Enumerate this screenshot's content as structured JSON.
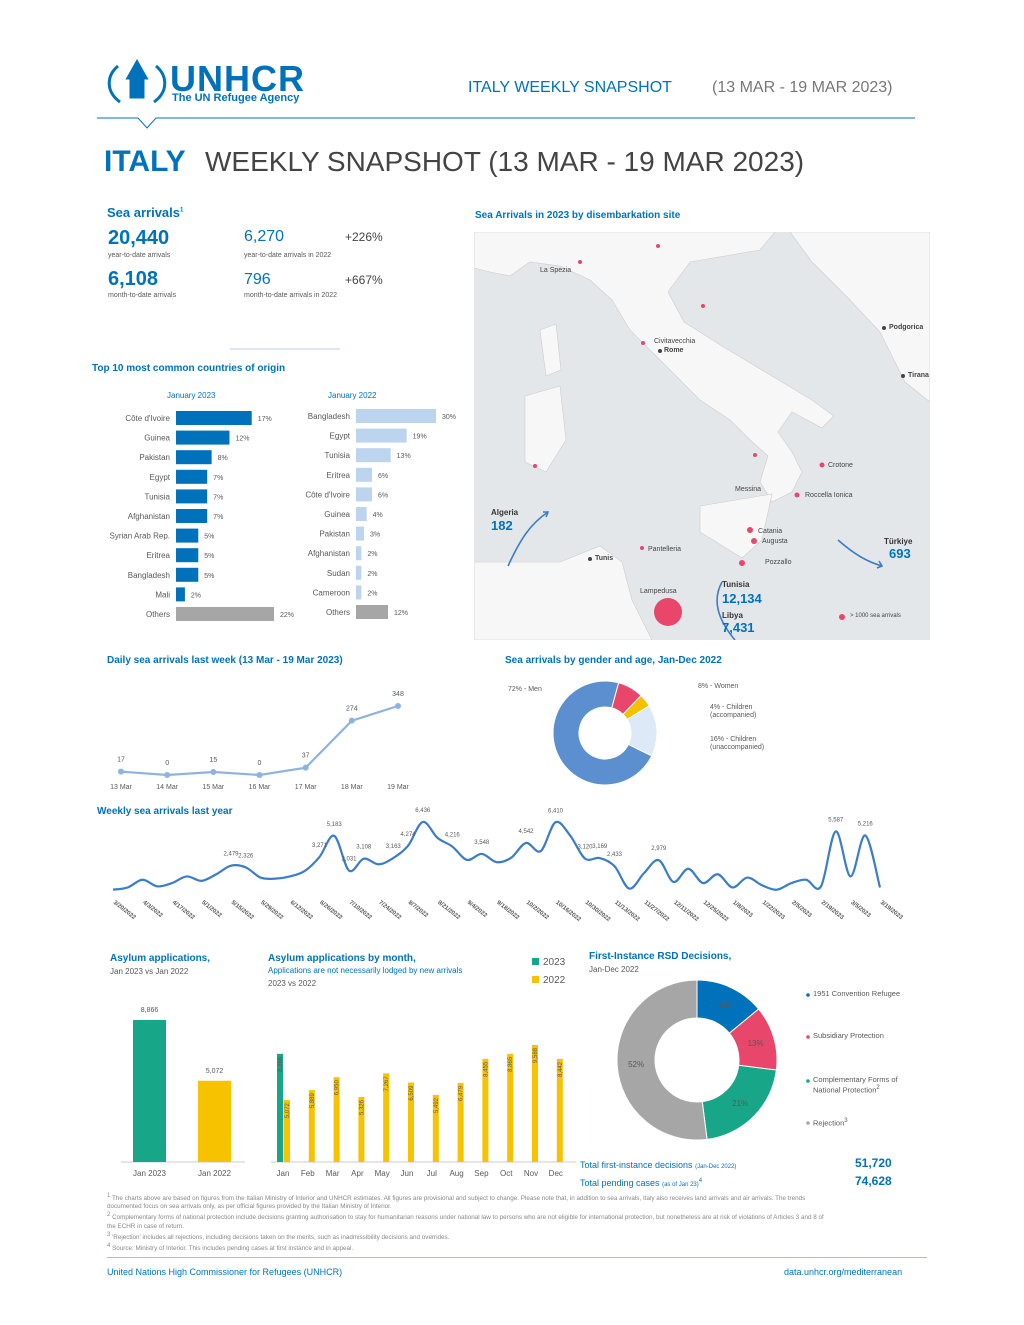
{
  "header": {
    "logo": "UNHCR",
    "tagline": "The UN Refugee Agency",
    "snapshot": "ITALY WEEKLY SNAPSHOT",
    "period": "(13 MAR - 19 MAR 2023)"
  },
  "title": {
    "country": "ITALY",
    "text": "WEEKLY SNAPSHOT (13 MAR - 19 MAR 2023)"
  },
  "sea_arrivals": {
    "title": "Sea arrivals",
    "note": "1",
    "stats": [
      {
        "value": "20,440",
        "label": "year-to-date arrivals"
      },
      {
        "value": "6,108",
        "label": "month-to-date arrivals"
      },
      {
        "value": "6,270",
        "label": "year-to-date arrivals in 2022",
        "change": "+226%"
      },
      {
        "value": "796",
        "label": "month-to-date arrivals in 2022",
        "change": "+667%"
      }
    ]
  },
  "map": {
    "title": "Sea Arrivals in 2023 by disembarkation site",
    "places": [
      "La Spezia",
      "Civitavecchia",
      "Rome",
      "Podgorica",
      "Tirana",
      "Crotone",
      "Roccella Ionica",
      "Messina",
      "Catania",
      "Augusta",
      "Pozzallo",
      "Pantelleria",
      "Lampedusa",
      "Tunis"
    ],
    "flows": [
      {
        "origin": "Algeria",
        "arrivals": "182"
      },
      {
        "origin": "Türkiye",
        "arrivals": "693"
      },
      {
        "origin": "Tunisia",
        "arrivals": "12,134"
      },
      {
        "origin": "Libya",
        "arrivals": "7,431"
      }
    ],
    "legend": "> 1000 sea arrivals"
  },
  "origin": {
    "title": "Top 10 most common countries of origin"
  },
  "chart_data": [
    {
      "type": "hbar",
      "subtitle": "January 2023",
      "categories": [
        "Côte d'Ivoire",
        "Guinea",
        "Pakistan",
        "Egypt",
        "Tunisia",
        "Afghanistan",
        "Syrian Arab Rep.",
        "Eritrea",
        "Bangladesh",
        "Mali",
        "Others"
      ],
      "values": [
        17,
        12,
        8,
        7,
        7,
        7,
        5,
        5,
        5,
        2,
        22
      ],
      "value_labels": [
        "17%",
        "12%",
        "8%",
        "7%",
        "7%",
        "7%",
        "5%",
        "5%",
        "5%",
        "2%",
        "22%"
      ],
      "colors": [
        "#0072bc",
        "#0072bc",
        "#0072bc",
        "#0072bc",
        "#0072bc",
        "#0072bc",
        "#0072bc",
        "#0072bc",
        "#0072bc",
        "#0072bc",
        "#a6a6a6"
      ]
    },
    {
      "type": "hbar",
      "subtitle": "January 2022",
      "categories": [
        "Bangladesh",
        "Egypt",
        "Tunisia",
        "Eritrea",
        "Côte d'Ivoire",
        "Guinea",
        "Pakistan",
        "Afghanistan",
        "Sudan",
        "Cameroon",
        "Others"
      ],
      "values": [
        30,
        19,
        13,
        6,
        6,
        4,
        3,
        2,
        2,
        2,
        12
      ],
      "value_labels": [
        "30%",
        "19%",
        "13%",
        "6%",
        "6%",
        "4%",
        "3%",
        "2%",
        "2%",
        "2%",
        "12%"
      ],
      "colors": [
        "#bcd4ee",
        "#bcd4ee",
        "#bcd4ee",
        "#bcd4ee",
        "#bcd4ee",
        "#bcd4ee",
        "#bcd4ee",
        "#bcd4ee",
        "#bcd4ee",
        "#bcd4ee",
        "#a6a6a6"
      ]
    },
    {
      "type": "line",
      "title": "Daily sea arrivals last week (13 Mar - 19 Mar 2023)",
      "categories": [
        "13 Mar",
        "14 Mar",
        "15 Mar",
        "16 Mar",
        "17 Mar",
        "18 Mar",
        "19 Mar"
      ],
      "values": [
        17,
        0,
        15,
        0,
        37,
        274,
        348
      ],
      "color": "#8fb3e0"
    },
    {
      "type": "pie",
      "title": "Sea arrivals by gender and age, Jan-Dec 2022",
      "values": [
        72,
        8,
        4,
        16
      ],
      "value_labels": [
        "72% - Men",
        "8% - Women",
        "4% - Children (accompanied)",
        "16% - Children (unaccompanied)"
      ],
      "colors": [
        "#5b8fd0",
        "#e8466a",
        "#f5c000",
        "#dde9f7"
      ]
    },
    {
      "type": "line",
      "title": "Weekly sea arrivals last year",
      "categories": [
        "3/20/2022",
        null,
        "4/3/2022",
        null,
        "4/17/2022",
        null,
        "5/1/2022",
        null,
        "5/15/2022",
        null,
        "5/29/2022",
        null,
        "6/12/2022",
        null,
        "6/26/2022",
        null,
        "7/10/2022",
        null,
        "7/24/2022",
        null,
        "8/7/2022",
        null,
        "8/21/2022",
        null,
        "9/4/2022",
        null,
        "9/18/2022",
        null,
        "10/2/2022",
        null,
        "10/16/2022",
        null,
        "10/30/2022",
        null,
        "11/13/2022",
        null,
        "11/27/2022",
        null,
        "12/11/2022",
        null,
        "12/25/2022",
        null,
        "1/8/2023",
        null,
        "1/22/2023",
        null,
        "2/5/2023",
        null,
        "2/19/2023",
        null,
        "3/5/2023",
        null,
        "3/19/2023"
      ],
      "values": [
        300,
        500,
        1200,
        600,
        900,
        1500,
        1100,
        1700,
        2479,
        2326,
        1400,
        1300,
        1500,
        2000,
        3271,
        5183,
        2031,
        3108,
        2600,
        3163,
        4274,
        6436,
        5000,
        4216,
        3000,
        3548,
        2800,
        3200,
        4542,
        3800,
        6410,
        5200,
        3120,
        3169,
        2433,
        400,
        1800,
        2979,
        1000,
        2200,
        900,
        1700,
        500,
        1400,
        700,
        300,
        900,
        1200,
        600,
        5587,
        1500,
        5216,
        500
      ],
      "value_labels": [
        null,
        null,
        null,
        null,
        null,
        null,
        null,
        null,
        "2,479",
        "2,326",
        null,
        null,
        null,
        null,
        "3,271",
        "5,183",
        "2,031",
        "3,108",
        null,
        "3,163",
        "4,274",
        "6,436",
        null,
        "4,216",
        null,
        "3,548",
        null,
        null,
        "4,542",
        null,
        "6,410",
        null,
        "3,120",
        "3,169",
        "2,433",
        null,
        null,
        "2,979",
        null,
        null,
        null,
        null,
        null,
        null,
        null,
        null,
        null,
        null,
        null,
        "5,587",
        null,
        "5,216",
        null
      ],
      "color": "#3b7dc8"
    },
    {
      "type": "bar",
      "title": "Asylum applications,",
      "subtitle": "Jan 2023 vs Jan 2022",
      "categories": [
        "Jan 2023",
        "Jan 2022"
      ],
      "values": [
        8866,
        5072
      ],
      "value_labels": [
        "8,866",
        "5,072"
      ],
      "colors": [
        "#18a689",
        "#f7c200"
      ]
    },
    {
      "type": "bar",
      "title": "Asylum applications by month,",
      "subtitle": "Applications are not necessarily lodged by new arrivals",
      "subtitle2": "2023 vs 2022",
      "categories": [
        "Jan",
        "Feb",
        "Mar",
        "Apr",
        "May",
        "Jun",
        "Jul",
        "Aug",
        "Sep",
        "Oct",
        "Nov",
        "Dec"
      ],
      "series": [
        {
          "name": "2023",
          "color": "#18a689",
          "values": [
            8866,
            null,
            null,
            null,
            null,
            null,
            null,
            null,
            null,
            null,
            null,
            null
          ],
          "value_labels": [
            "8,866",
            null,
            null,
            null,
            null,
            null,
            null,
            null,
            null,
            null,
            null,
            null
          ]
        },
        {
          "name": "2022",
          "color": "#f7c200",
          "values": [
            5072,
            5889,
            6950,
            5326,
            7267,
            6509,
            5492,
            6479,
            8455,
            8865,
            9588,
            8442
          ],
          "value_labels": [
            "5,072",
            "5,889",
            "6,950",
            "5,326",
            "7,267",
            "6,509",
            "5,492",
            "6,479",
            "8,455",
            "8,865",
            "9,588",
            "8,442"
          ]
        }
      ]
    },
    {
      "type": "pie",
      "title": "First-Instance RSD Decisions,",
      "subtitle": "Jan-Dec 2022",
      "categories": [
        "1951 Convention Refugee",
        "Subsidiary Protection",
        "Complementary Forms of National Protection",
        "Rejection"
      ],
      "notes": [
        null,
        null,
        "2",
        "3"
      ],
      "values": [
        14,
        13,
        21,
        52
      ],
      "value_labels": [
        "14%",
        "13%",
        "21%",
        "52%"
      ],
      "colors": [
        "#0072bc",
        "#e8466a",
        "#18a689",
        "#a6a6a6"
      ]
    }
  ],
  "totals": [
    {
      "label": "Total first-instance decisions",
      "qualifier": "(Jan-Dec 2022)",
      "value": "51,720"
    },
    {
      "label": "Total pending cases",
      "qualifier": "(as of Jan 23)",
      "note": "4",
      "value": "74,628"
    }
  ],
  "footnotes": [
    {
      "note": "1",
      "text": "The charts above are based on figures from the Italian Ministry of Interior and UNHCR estimates. All figures are provisional and subject to change. Please note that, in addition to sea arrivals, Italy also receives land arrivals and air arrivals. The trends documented focus on sea arrivals only, as per official figures provided by the Italian Ministry of Interior."
    },
    {
      "note": "2",
      "text": "Complementary forms of national protection include decisions granting authorisation to stay for humanitarian reasons under national law to persons who are not eligible for international protection, but nonetheless are at risk of violations of Articles 3 and 8 of the ECHR in case of return."
    },
    {
      "note": "3",
      "text": "'Rejection' includes all rejections, including decisions taken on the merits, such as inadmissibility decisions and overrides."
    },
    {
      "note": "4",
      "text": "Source: Ministry of Interior. This includes pending cases at first instance and in appeal."
    }
  ],
  "footer": {
    "left": "United Nations High Commissioner for Refugees (UNHCR)",
    "right": "data.unhcr.org/mediterranean"
  }
}
